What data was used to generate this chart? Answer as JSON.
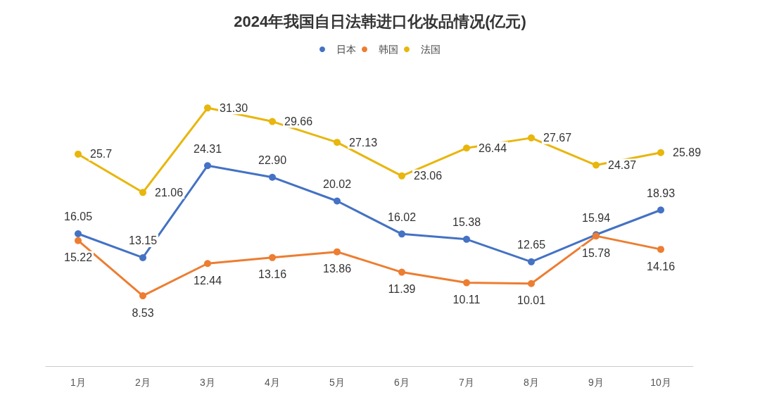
{
  "chart_data": {
    "type": "line",
    "title": "2024年我国自日法韩进口化妆品情况(亿元)",
    "categories": [
      "1月",
      "2月",
      "3月",
      "4月",
      "5月",
      "6月",
      "7月",
      "8月",
      "9月",
      "10月"
    ],
    "series": [
      {
        "name": "日本",
        "color": "#4472c4",
        "values": [
          16.05,
          13.15,
          24.31,
          22.9,
          20.02,
          16.02,
          15.38,
          12.65,
          15.94,
          18.93
        ],
        "value_labels": [
          "16.05",
          "13.15",
          "24.31",
          "22.90",
          "20.02",
          "16.02",
          "15.38",
          "12.65",
          "15.94",
          "18.93"
        ]
      },
      {
        "name": "韩国",
        "color": "#ed7d31",
        "values": [
          15.22,
          8.53,
          12.44,
          13.16,
          13.86,
          11.39,
          10.11,
          10.01,
          15.78,
          14.16
        ],
        "value_labels": [
          "15.22",
          "8.53",
          "12.44",
          "13.16",
          "13.86",
          "11.39",
          "10.11",
          "10.01",
          "15.78",
          "14.16"
        ]
      },
      {
        "name": "法国",
        "color": "#e8b60c",
        "values": [
          25.7,
          21.06,
          31.3,
          29.66,
          27.13,
          23.06,
          26.44,
          27.67,
          24.37,
          25.89
        ],
        "value_labels": [
          "25.7",
          "21.06",
          "31.30",
          "29.66",
          "27.13",
          "23.06",
          "26.44",
          "27.67",
          "24.37",
          "25.89"
        ]
      }
    ],
    "legend": "top",
    "marker": "circle",
    "line_style": "solid",
    "grid": false
  }
}
